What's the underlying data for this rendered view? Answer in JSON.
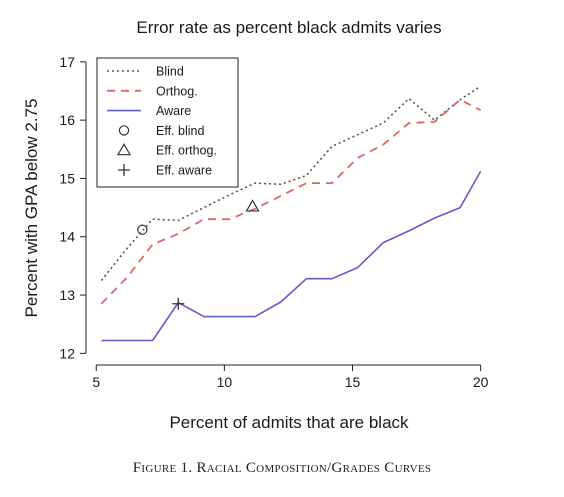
{
  "chart_data": {
    "type": "line",
    "title": "Error rate as percent black admits varies",
    "xlabel": "Percent of admits that are black",
    "ylabel": "Percent with GPA below 2.75",
    "xlim": [
      4.6,
      20.6
    ],
    "ylim": [
      11.8,
      17.1
    ],
    "xticks": [
      5,
      10,
      15,
      20
    ],
    "yticks": [
      12,
      13,
      14,
      15,
      16,
      17
    ],
    "x": [
      5.2,
      6.2,
      7.2,
      8.2,
      9.2,
      10.2,
      11.2,
      12.2,
      13.2,
      14.2,
      15.2,
      16.2,
      17.2,
      18.2,
      19.2,
      20.0
    ],
    "series": [
      {
        "name": "Blind",
        "style": "dotted",
        "color": "#555555",
        "values": [
          13.25,
          13.8,
          14.3,
          14.28,
          14.5,
          14.72,
          14.92,
          14.9,
          15.05,
          15.55,
          15.75,
          15.95,
          16.37,
          16.0,
          16.35,
          16.58
        ]
      },
      {
        "name": "Orthog.",
        "style": "dashed",
        "color": "#e06666",
        "values": [
          12.85,
          13.3,
          13.87,
          14.05,
          14.3,
          14.3,
          14.48,
          14.7,
          14.92,
          14.92,
          15.35,
          15.58,
          15.95,
          15.97,
          16.35,
          16.17
        ]
      },
      {
        "name": "Aware",
        "style": "solid",
        "color": "#5c5fc9",
        "values": [
          12.22,
          12.22,
          12.22,
          12.87,
          12.63,
          12.63,
          12.63,
          12.88,
          13.28,
          13.28,
          13.47,
          13.9,
          14.1,
          14.32,
          14.5,
          15.12
        ]
      }
    ],
    "markers": [
      {
        "name": "Eff. blind",
        "symbol": "circle",
        "x": 6.8,
        "y": 14.12
      },
      {
        "name": "Eff. orthog.",
        "symbol": "triangle",
        "x": 11.1,
        "y": 14.52
      },
      {
        "name": "Eff. aware",
        "symbol": "plus",
        "x": 8.2,
        "y": 12.85
      }
    ],
    "legend": {
      "placement": "top-left",
      "entries": [
        {
          "label": "Blind",
          "symbol": "dotted-line"
        },
        {
          "label": "Orthog.",
          "symbol": "dashed-line"
        },
        {
          "label": "Aware",
          "symbol": "solid-line"
        },
        {
          "label": "Eff. blind",
          "symbol": "circle"
        },
        {
          "label": "Eff. orthog.",
          "symbol": "triangle"
        },
        {
          "label": "Eff. aware",
          "symbol": "plus"
        }
      ]
    },
    "grid": false
  },
  "caption": "Figure 1. Racial Composition/Grades Curves"
}
